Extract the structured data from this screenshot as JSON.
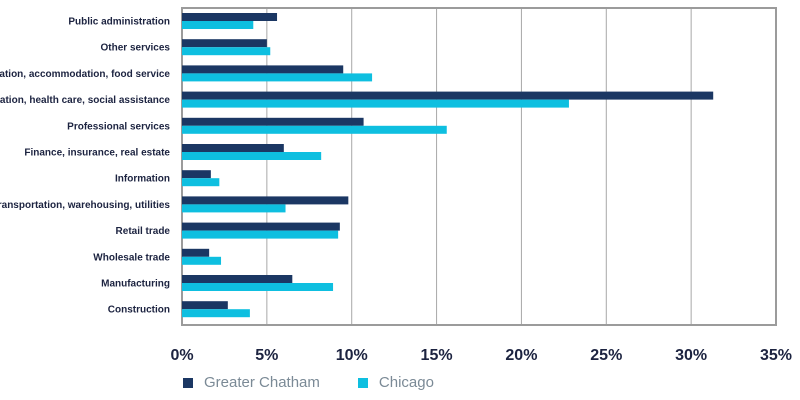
{
  "chart_data": {
    "type": "bar",
    "orientation": "horizontal",
    "categories": [
      "Public administration",
      "Other services",
      "Arts,  recreation, accommodation, food service",
      "Education, health care, social assistance",
      "Professional services",
      "Finance, insurance, real estate",
      "Information",
      "Transportation, warehousing, utilities",
      "Retail trade",
      "Wholesale trade",
      "Manufacturing",
      "Construction"
    ],
    "series": [
      {
        "name": "Greater Chatham",
        "color": "#1b3763",
        "values": [
          5.6,
          5.0,
          9.5,
          31.3,
          10.7,
          6.0,
          1.7,
          9.8,
          9.3,
          1.6,
          6.5,
          2.7
        ]
      },
      {
        "name": "Chicago",
        "color": "#0ebfe0",
        "values": [
          4.2,
          5.2,
          11.2,
          22.8,
          15.6,
          8.2,
          2.2,
          6.1,
          9.2,
          2.3,
          8.9,
          4.0
        ]
      }
    ],
    "xlim": [
      0,
      35
    ],
    "xticks": [
      "0%",
      "5%",
      "10%",
      "15%",
      "20%",
      "25%",
      "30%",
      "35%"
    ],
    "grid": "vertical",
    "legend_position": "bottom-left"
  }
}
